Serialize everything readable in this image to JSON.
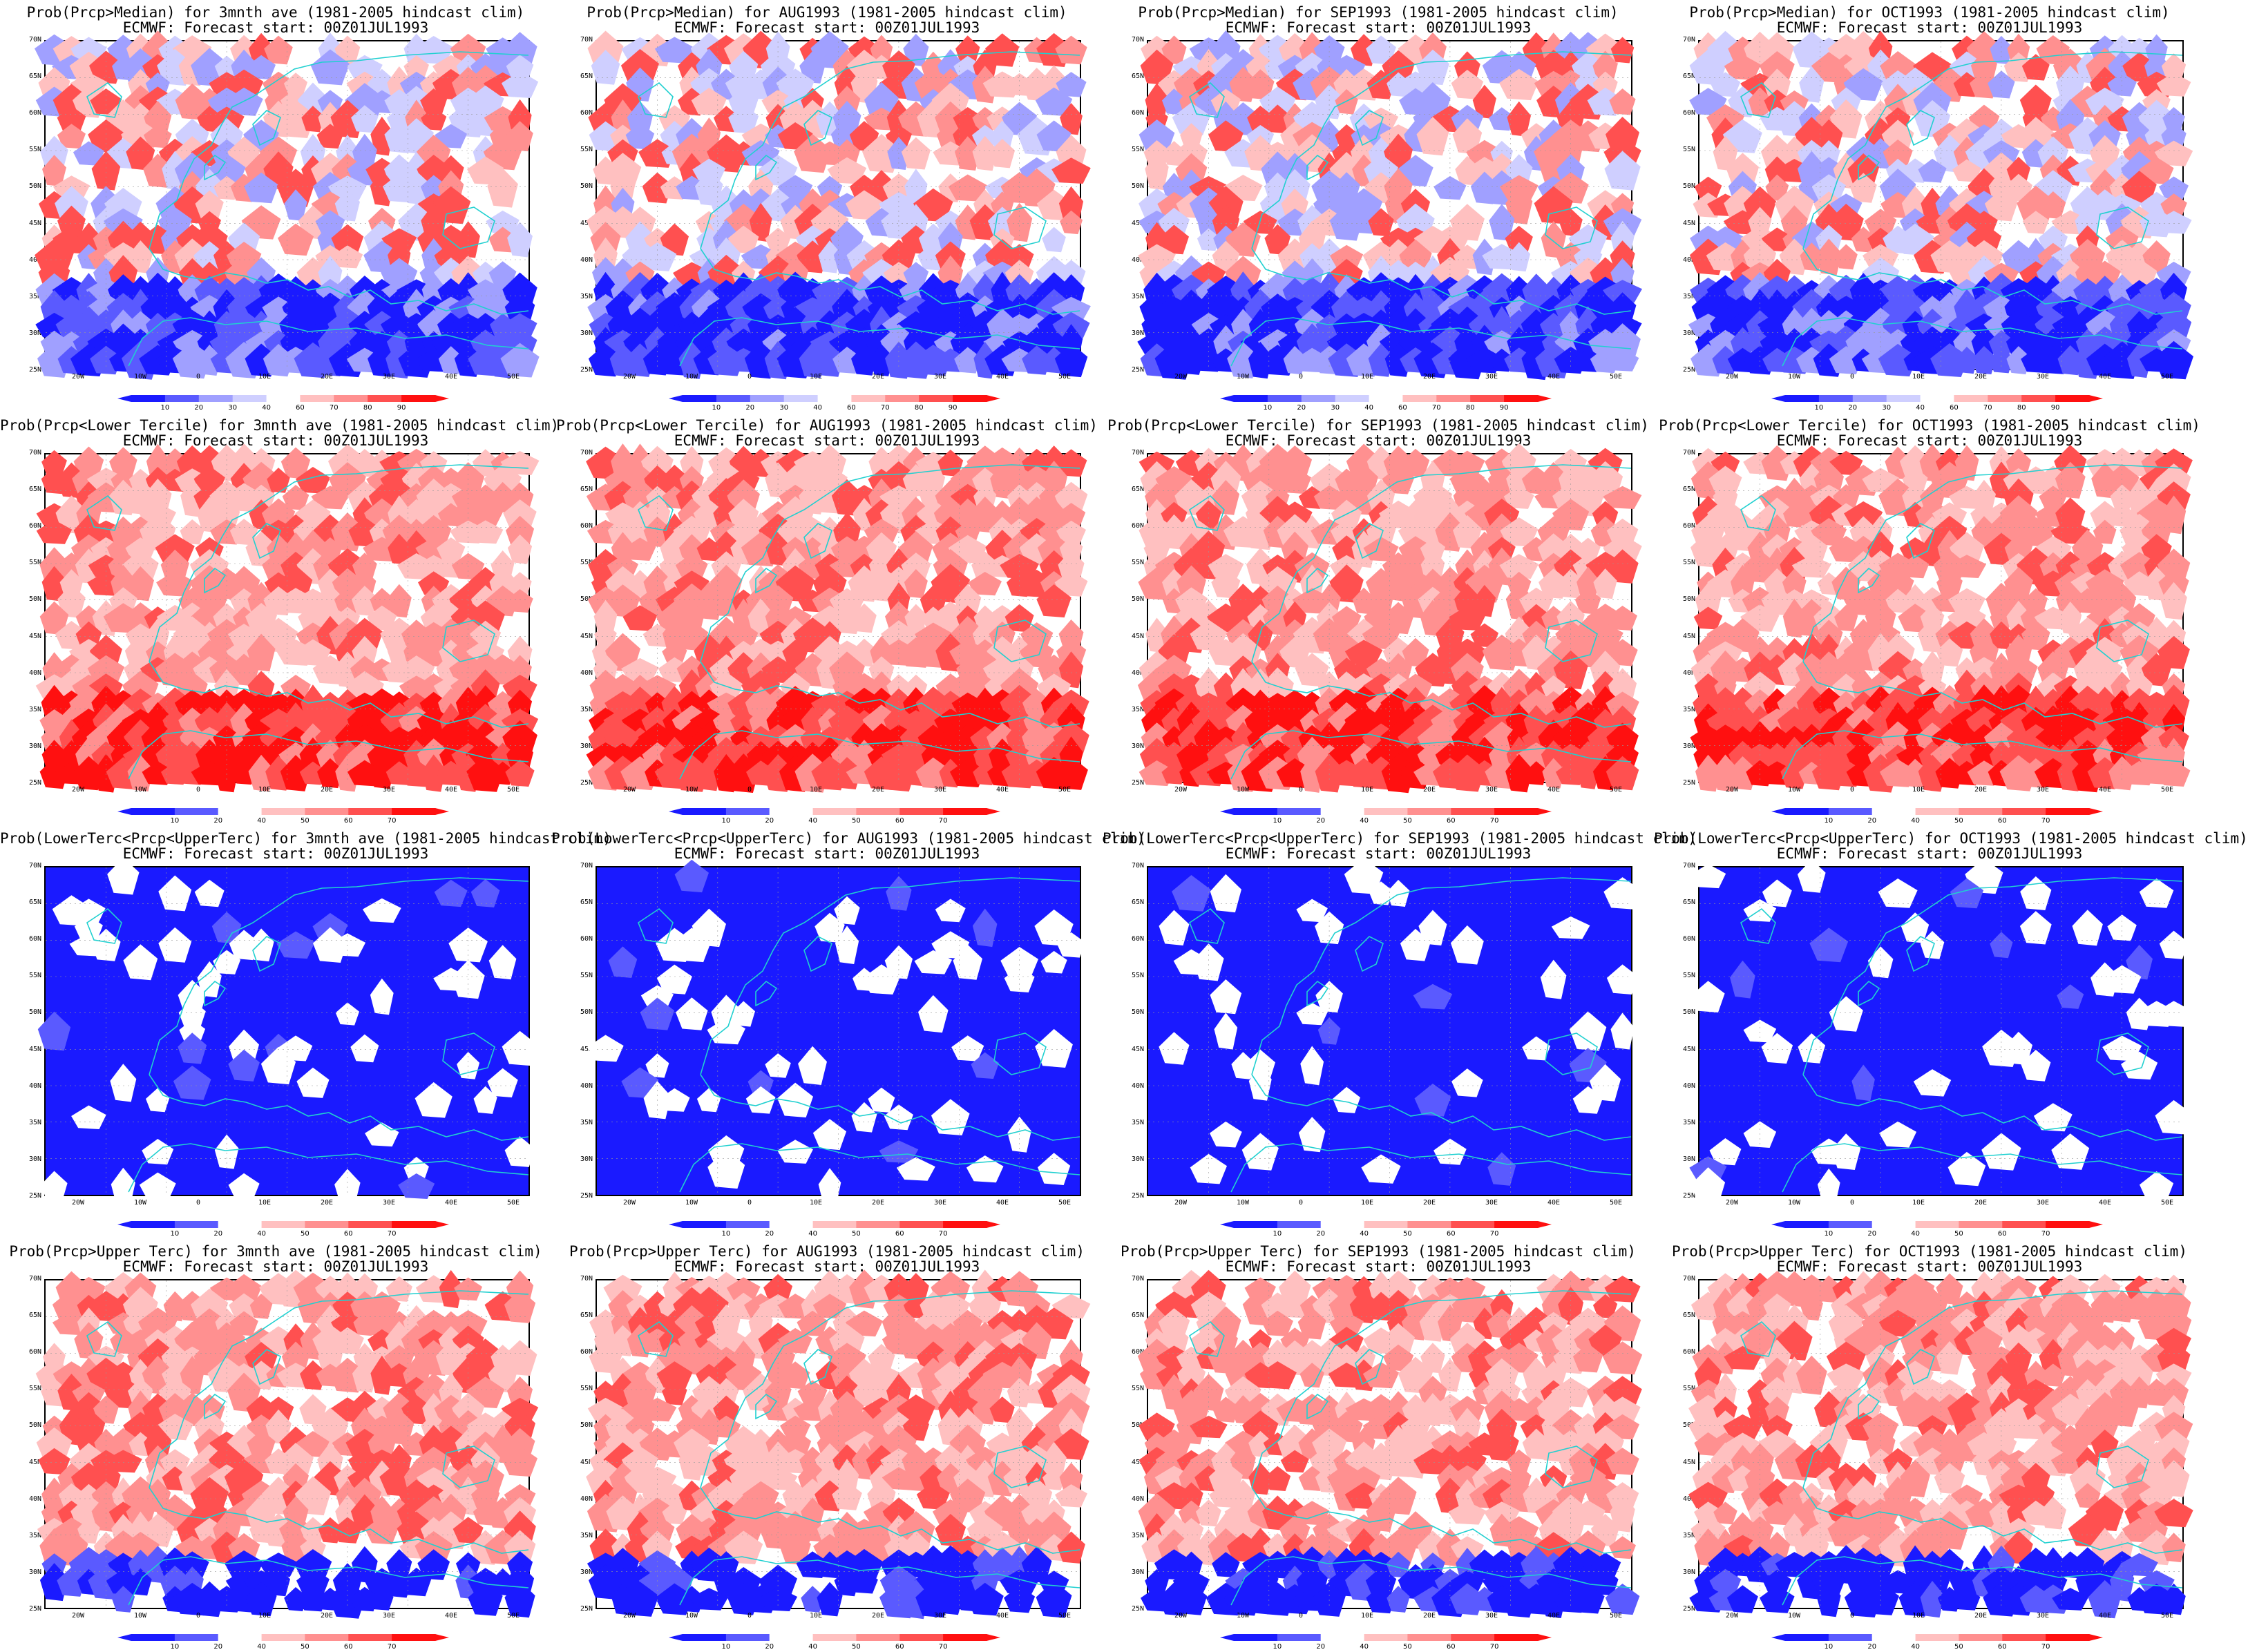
{
  "colors": {
    "deep_blue": "#1a1aff",
    "blue": "#5a5aff",
    "light_blue": "#a0a0ff",
    "pale_blue": "#cfcfff",
    "pale_red": "#ffc0c0",
    "light_red": "#ff9090",
    "red": "#ff5050",
    "deep_red": "#ff1010",
    "coast": "#20d0d0"
  },
  "panels": [
    {
      "title": "Prob(Prcp>Median) for 3mnth ave (1981-2005 hindcast clim)",
      "subtitle": "ECMWF: Forecast start: 00Z01JUL1993",
      "colorbar": [
        "10",
        "20",
        "30",
        "40",
        "60",
        "70",
        "80",
        "90"
      ],
      "pattern": "median"
    },
    {
      "title": "Prob(Prcp>Median) for AUG1993 (1981-2005 hindcast clim)",
      "subtitle": "ECMWF: Forecast start: 00Z01JUL1993",
      "colorbar": [
        "10",
        "20",
        "30",
        "40",
        "60",
        "70",
        "80",
        "90"
      ],
      "pattern": "median"
    },
    {
      "title": "Prob(Prcp>Median) for SEP1993 (1981-2005 hindcast clim)",
      "subtitle": "ECMWF: Forecast start: 00Z01JUL1993",
      "colorbar": [
        "10",
        "20",
        "30",
        "40",
        "60",
        "70",
        "80",
        "90"
      ],
      "pattern": "median"
    },
    {
      "title": "Prob(Prcp>Median) for OCT1993 (1981-2005 hindcast clim)",
      "subtitle": "ECMWF: Forecast start: 00Z01JUL1993",
      "colorbar": [
        "10",
        "20",
        "30",
        "40",
        "60",
        "70",
        "80",
        "90"
      ],
      "pattern": "median"
    },
    {
      "title": "Prob(Prcp<Lower Tercile) for 3mnth ave (1981-2005 hindcast clim)",
      "subtitle": "ECMWF: Forecast start: 00Z01JUL1993",
      "colorbar": [
        "10",
        "20",
        "40",
        "50",
        "60",
        "70"
      ],
      "pattern": "lower"
    },
    {
      "title": "Prob(Prcp<Lower Tercile) for AUG1993 (1981-2005 hindcast clim)",
      "subtitle": "ECMWF: Forecast start: 00Z01JUL1993",
      "colorbar": [
        "10",
        "20",
        "40",
        "50",
        "60",
        "70"
      ],
      "pattern": "lower"
    },
    {
      "title": "Prob(Prcp<Lower Tercile) for SEP1993 (1981-2005 hindcast clim)",
      "subtitle": "ECMWF: Forecast start: 00Z01JUL1993",
      "colorbar": [
        "10",
        "20",
        "40",
        "50",
        "60",
        "70"
      ],
      "pattern": "lower"
    },
    {
      "title": "Prob(Prcp<Lower Tercile) for OCT1993 (1981-2005 hindcast clim)",
      "subtitle": "ECMWF: Forecast start: 00Z01JUL1993",
      "colorbar": [
        "10",
        "20",
        "40",
        "50",
        "60",
        "70"
      ],
      "pattern": "lower"
    },
    {
      "title": "Prob(LowerTerc<Prcp<UpperTerc) for 3mnth ave (1981-2005 hindcast clim)",
      "subtitle": "ECMWF: Forecast start: 00Z01JUL1993",
      "colorbar": [
        "10",
        "20",
        "40",
        "50",
        "60",
        "70"
      ],
      "pattern": "middle"
    },
    {
      "title": "Prob(LowerTerc<Prcp<UpperTerc) for AUG1993 (1981-2005 hindcast clim)",
      "subtitle": "ECMWF: Forecast start: 00Z01JUL1993",
      "colorbar": [
        "10",
        "20",
        "40",
        "50",
        "60",
        "70"
      ],
      "pattern": "middle"
    },
    {
      "title": "Prob(LowerTerc<Prcp<UpperTerc) for SEP1993 (1981-2005 hindcast clim)",
      "subtitle": "ECMWF: Forecast start: 00Z01JUL1993",
      "colorbar": [
        "10",
        "20",
        "40",
        "50",
        "60",
        "70"
      ],
      "pattern": "middle"
    },
    {
      "title": "Prob(LowerTerc<Prcp<UpperTerc) for OCT1993 (1981-2005 hindcast clim)",
      "subtitle": "ECMWF: Forecast start: 00Z01JUL1993",
      "colorbar": [
        "10",
        "20",
        "40",
        "50",
        "60",
        "70"
      ],
      "pattern": "middle"
    },
    {
      "title": "Prob(Prcp>Upper Terc) for 3mnth ave (1981-2005 hindcast clim)",
      "subtitle": "ECMWF: Forecast start: 00Z01JUL1993",
      "colorbar": [
        "10",
        "20",
        "40",
        "50",
        "60",
        "70"
      ],
      "pattern": "upper"
    },
    {
      "title": "Prob(Prcp>Upper Terc) for AUG1993 (1981-2005 hindcast clim)",
      "subtitle": "ECMWF: Forecast start: 00Z01JUL1993",
      "colorbar": [
        "10",
        "20",
        "40",
        "50",
        "60",
        "70"
      ],
      "pattern": "upper"
    },
    {
      "title": "Prob(Prcp>Upper Terc) for SEP1993 (1981-2005 hindcast clim)",
      "subtitle": "ECMWF: Forecast start: 00Z01JUL1993",
      "colorbar": [
        "10",
        "20",
        "40",
        "50",
        "60",
        "70"
      ],
      "pattern": "upper"
    },
    {
      "title": "Prob(Prcp>Upper Terc) for OCT1993 (1981-2005 hindcast clim)",
      "subtitle": "ECMWF: Forecast start: 00Z01JUL1993",
      "colorbar": [
        "10",
        "20",
        "40",
        "50",
        "60",
        "70"
      ],
      "pattern": "upper"
    }
  ],
  "lat_labels": [
    "70N",
    "65N",
    "60N",
    "55N",
    "50N",
    "45N",
    "40N",
    "35N",
    "30N",
    "25N"
  ],
  "lon_labels": [
    "20W",
    "10W",
    "0",
    "10E",
    "20E",
    "30E",
    "40E",
    "50E"
  ]
}
